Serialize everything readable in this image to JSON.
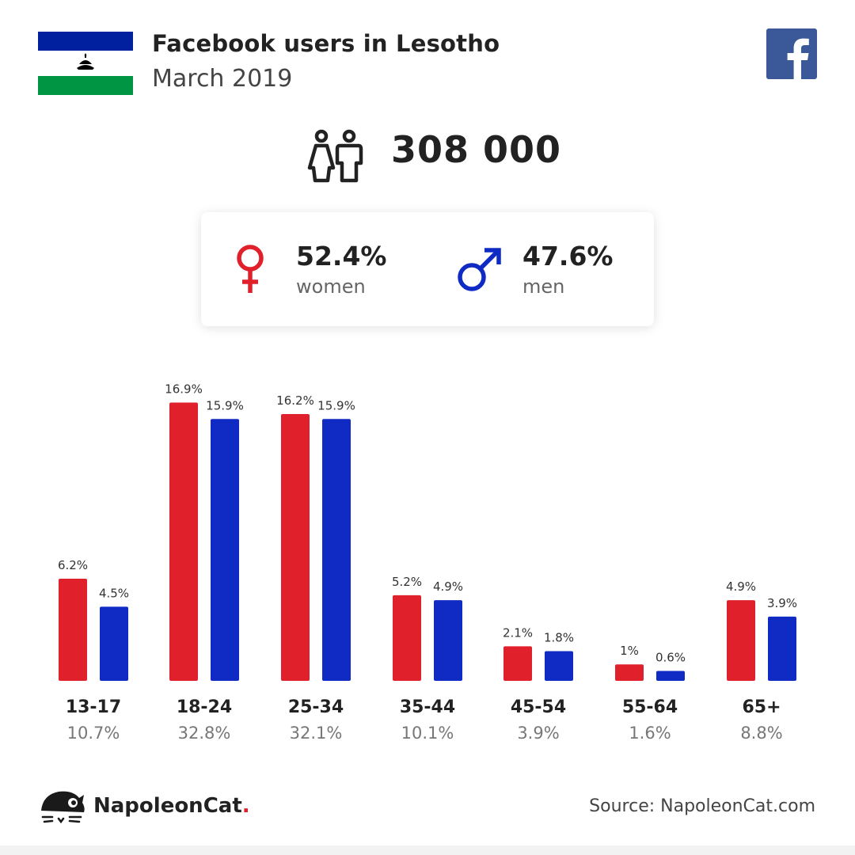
{
  "header": {
    "title": "Facebook users in Lesotho",
    "date": "March 2019"
  },
  "icons": {
    "flag": "lesotho-flag-icon",
    "facebook": "facebook-logo-icon",
    "users": "users-icon",
    "female": "female-symbol-icon",
    "male": "male-symbol-icon",
    "brand": "napoleoncat-logo-icon"
  },
  "total_users": "308 000",
  "gender": {
    "women": {
      "value": "52.4%",
      "label": "women"
    },
    "men": {
      "value": "47.6%",
      "label": "men"
    }
  },
  "colors": {
    "women": "#e0202a",
    "men": "#0f2bc4",
    "facebook": "#3b5998",
    "flag_blue": "#00209f",
    "flag_green": "#009543"
  },
  "chart_data": {
    "type": "bar",
    "categories": [
      "13-17",
      "18-24",
      "25-34",
      "35-44",
      "45-54",
      "55-64",
      "65+"
    ],
    "category_totals": [
      "10.7%",
      "32.8%",
      "32.1%",
      "10.1%",
      "3.9%",
      "1.6%",
      "8.8%"
    ],
    "series": [
      {
        "name": "women",
        "values": [
          6.2,
          16.9,
          16.2,
          5.2,
          2.1,
          1,
          4.9
        ],
        "labels": [
          "6.2%",
          "16.9%",
          "16.2%",
          "5.2%",
          "2.1%",
          "1%",
          "4.9%"
        ]
      },
      {
        "name": "men",
        "values": [
          4.5,
          15.9,
          15.9,
          4.9,
          1.8,
          0.6,
          3.9
        ],
        "labels": [
          "4.5%",
          "15.9%",
          "15.9%",
          "4.9%",
          "1.8%",
          "0.6%",
          "3.9%"
        ]
      }
    ],
    "unit": "%"
  },
  "footer": {
    "brand": "NapoleonCat",
    "brand_dot": ".",
    "source": "Source: NapoleonCat.com"
  }
}
